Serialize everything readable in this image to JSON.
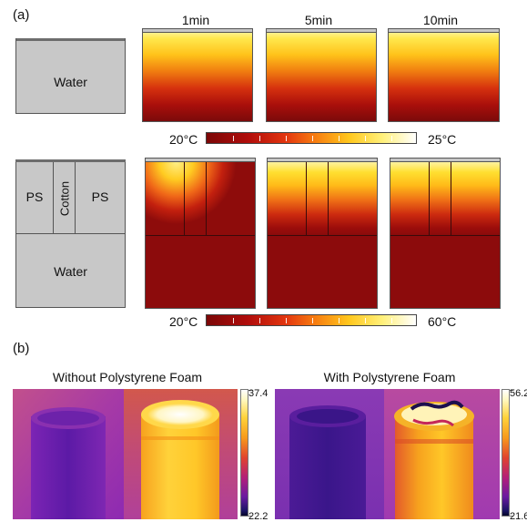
{
  "panel_a": {
    "label": "(a)",
    "times": [
      "1min",
      "5min",
      "10min"
    ],
    "schematic_top": {
      "region": "Water"
    },
    "schematic_bottom": {
      "left": "PS",
      "middle": "Cotton",
      "right": "PS",
      "bottom": "Water"
    },
    "colorbar_top": {
      "min": "20°C",
      "max": "25°C"
    },
    "colorbar_bottom": {
      "min": "20°C",
      "max": "60°C"
    }
  },
  "panel_b": {
    "label": "(b)",
    "left": {
      "title": "Without Polystyrene Foam",
      "max": "37.4",
      "min": "22.2"
    },
    "right": {
      "title": "With Polystyrene Foam",
      "max": "56.2",
      "min": "21.6"
    }
  },
  "colors": {
    "ir_background": "#a832a8",
    "ir_hot": "#ffd23a",
    "sim_cold": "#8c0b0c",
    "sim_hot": "#fff3a0"
  }
}
